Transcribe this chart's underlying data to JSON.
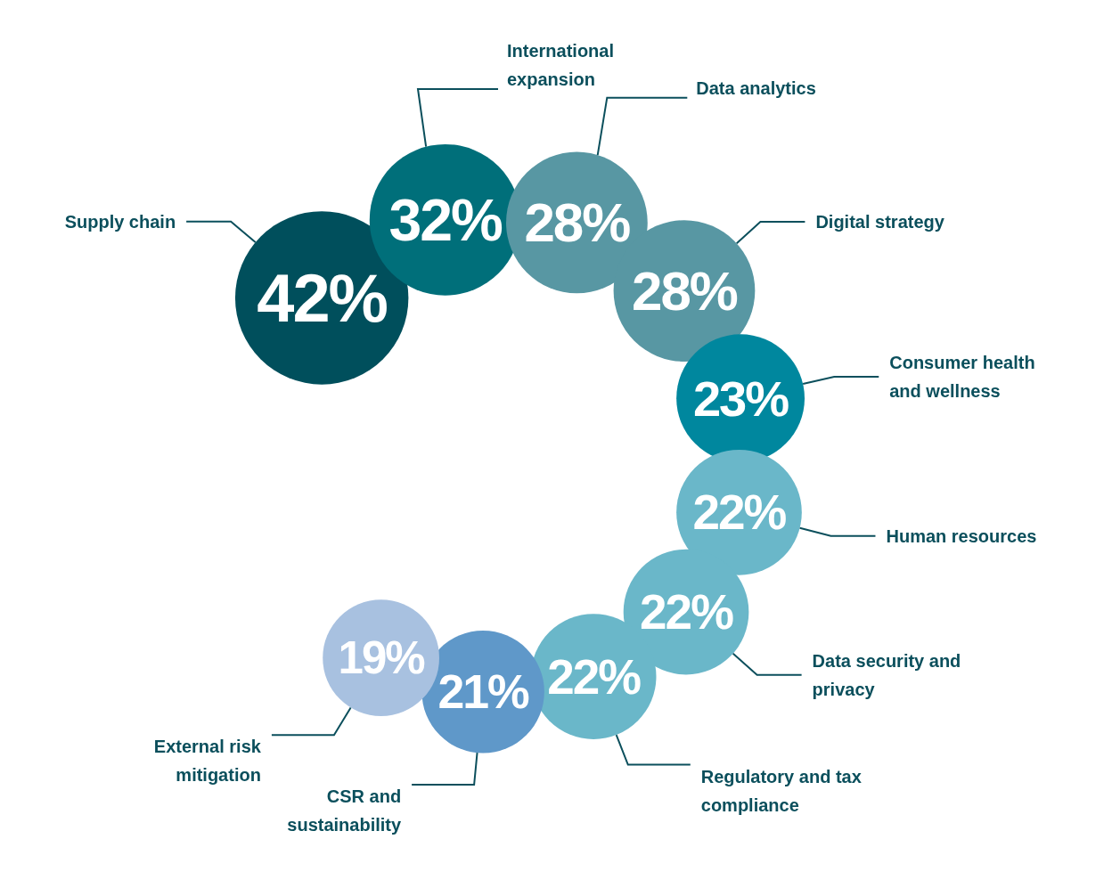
{
  "chart_data": {
    "type": "other",
    "categories": [
      "Supply chain",
      "International expansion",
      "Data analytics",
      "Digital strategy",
      "Consumer health and wellness",
      "Human resources",
      "Data security and privacy",
      "Regulatory and tax compliance",
      "CSR and sustainability",
      "External risk mitigation"
    ],
    "values": [
      42,
      32,
      28,
      28,
      23,
      22,
      22,
      22,
      21,
      19
    ],
    "value_labels": [
      "42%",
      "32%",
      "28%",
      "28%",
      "23%",
      "22%",
      "22%",
      "22%",
      "21%",
      "19%"
    ],
    "colors": [
      "#004f5c",
      "#006f7a",
      "#5897a3",
      "#5897a3",
      "#00879e",
      "#6ab7c9",
      "#6ab7c9",
      "#6ab7c9",
      "#5f98c9",
      "#a8c1e0"
    ]
  }
}
